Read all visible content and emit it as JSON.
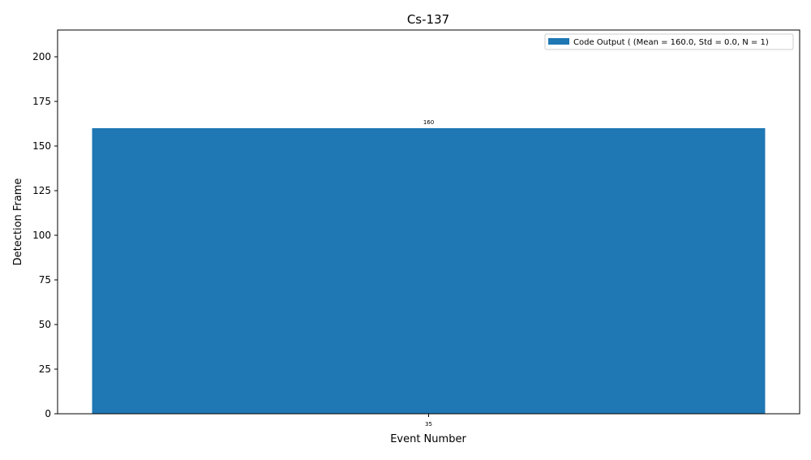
{
  "chart_data": {
    "type": "bar",
    "title": "Cs-137",
    "xlabel": "Event Number",
    "ylabel": "Detection Frame",
    "categories": [
      "35"
    ],
    "series": [
      {
        "name": "Code Output ( (Mean = 160.0, Std = 0.0, N = 1)",
        "values": [
          160
        ],
        "color": "#1f77b4"
      }
    ],
    "data_labels": [
      "160"
    ],
    "ylim": [
      0,
      215
    ],
    "yticks": [
      0,
      25,
      50,
      75,
      100,
      125,
      150,
      175,
      200
    ],
    "grid": false,
    "legend_position": "top-right"
  }
}
